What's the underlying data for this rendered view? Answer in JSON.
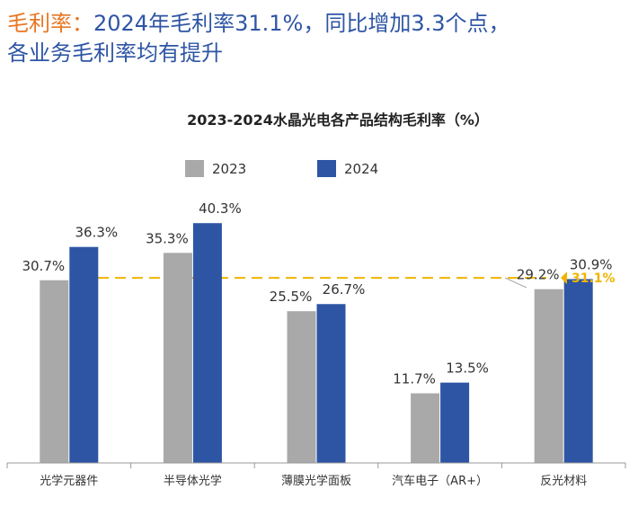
{
  "headline": {
    "accent": "毛利率：",
    "line1": "2024年毛利率31.1%，同比增加3.3个点，",
    "line2": "各业务毛利率均有提升"
  },
  "colors": {
    "headline": "#2E55A4",
    "accent": "#E87722",
    "series_2023": "#A9A9A9",
    "series_2024": "#2E55A4",
    "reference": "#F0B400"
  },
  "chart_data": {
    "type": "bar",
    "title": "2023-2024水晶光电各产品结构毛利率（%）",
    "categories": [
      "光学元器件",
      "半导体光学",
      "薄膜光学面板",
      "汽车电子（AR+）",
      "反光材料"
    ],
    "series": [
      {
        "name": "2023",
        "values": [
          30.7,
          35.3,
          25.5,
          11.7,
          29.2
        ],
        "labels": [
          "30.7%",
          "35.3%",
          "25.5%",
          "11.7%",
          "29.2%"
        ]
      },
      {
        "name": "2024",
        "values": [
          36.3,
          40.3,
          26.7,
          13.5,
          30.9
        ],
        "labels": [
          "36.3%",
          "40.3%",
          "26.7%",
          "13.5%",
          "30.9%"
        ]
      }
    ],
    "reference_line": {
      "value": 31.1,
      "label": "31.1%",
      "style": "dashed"
    },
    "ylim": [
      0,
      45
    ],
    "legend_position": "top",
    "grid": false
  }
}
